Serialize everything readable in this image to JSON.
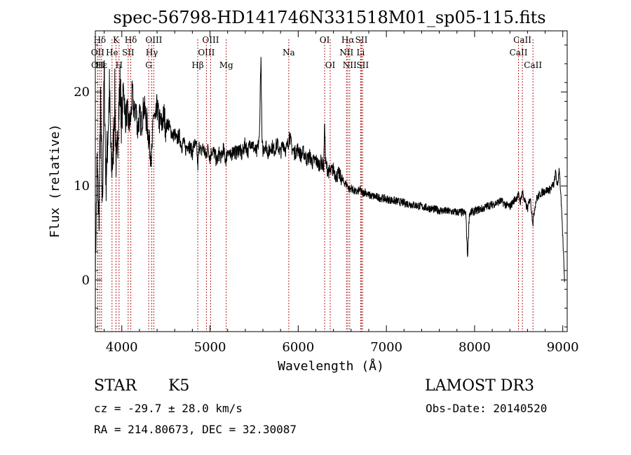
{
  "chart_data": {
    "type": "line",
    "title": "spec-56798-HD141746N331518M01_sp05-115.fits",
    "xlabel": "Wavelength (Å)",
    "ylabel": "Flux (relative)",
    "xlim": [
      3700,
      9050
    ],
    "ylim": [
      -5.5,
      26.5
    ],
    "xticks": [
      4000,
      5000,
      6000,
      7000,
      8000,
      9000
    ],
    "yticks": [
      0,
      10,
      20
    ],
    "xtick_labels": [
      "4000",
      "5000",
      "6000",
      "7000",
      "8000",
      "9000"
    ],
    "ytick_labels": [
      "0",
      "10",
      "20"
    ],
    "line_color": "#000000",
    "marker_color": "#b22222",
    "series": [
      {
        "name": "flux",
        "x": [
          3700,
          3720,
          3740,
          3760,
          3780,
          3800,
          3820,
          3840,
          3860,
          3880,
          3900,
          3920,
          3940,
          3960,
          3980,
          4000,
          4020,
          4040,
          4060,
          4080,
          4100,
          4120,
          4140,
          4160,
          4180,
          4200,
          4220,
          4250,
          4280,
          4300,
          4320,
          4340,
          4360,
          4380,
          4400,
          4420,
          4450,
          4480,
          4500,
          4520,
          4550,
          4580,
          4600,
          4620,
          4650,
          4680,
          4700,
          4720,
          4750,
          4780,
          4800,
          4820,
          4850,
          4861,
          4880,
          4900,
          4920,
          4950,
          4980,
          5000,
          5020,
          5050,
          5080,
          5100,
          5130,
          5150,
          5170,
          5184,
          5200,
          5230,
          5260,
          5300,
          5330,
          5360,
          5400,
          5430,
          5460,
          5500,
          5530,
          5560,
          5577,
          5590,
          5600,
          5630,
          5660,
          5700,
          5730,
          5760,
          5800,
          5830,
          5860,
          5893,
          5900,
          5930,
          5960,
          6000,
          6030,
          6060,
          6100,
          6130,
          6160,
          6200,
          6230,
          6260,
          6290,
          6300,
          6310,
          6330,
          6360,
          6400,
          6430,
          6460,
          6500,
          6530,
          6563,
          6580,
          6600,
          6630,
          6660,
          6700,
          6730,
          6760,
          6800,
          6850,
          6900,
          6950,
          7000,
          7050,
          7100,
          7150,
          7200,
          7250,
          7300,
          7350,
          7400,
          7450,
          7500,
          7550,
          7600,
          7650,
          7700,
          7750,
          7800,
          7850,
          7900,
          7920,
          7940,
          7960,
          8000,
          8050,
          8100,
          8150,
          8200,
          8250,
          8300,
          8350,
          8400,
          8450,
          8500,
          8520,
          8542,
          8560,
          8600,
          8630,
          8662,
          8680,
          8700,
          8750,
          8800,
          8850,
          8900,
          8920,
          8940,
          8960,
          8980,
          9000,
          9020
        ],
        "values": [
          1.5,
          12.0,
          6.5,
          18.0,
          8.0,
          22.0,
          10.5,
          15.0,
          20.0,
          12.0,
          13.0,
          19.5,
          11.0,
          17.5,
          20.5,
          16.5,
          21.0,
          17.0,
          18.0,
          16.5,
          17.0,
          20.0,
          17.5,
          18.5,
          16.0,
          17.5,
          16.5,
          18.5,
          17.0,
          15.5,
          14.0,
          13.0,
          18.0,
          16.5,
          18.5,
          17.0,
          16.5,
          17.5,
          16.0,
          16.8,
          16.0,
          15.3,
          15.6,
          14.8,
          15.4,
          14.2,
          14.8,
          13.8,
          14.5,
          14.0,
          13.5,
          14.5,
          14.0,
          12.0,
          14.5,
          13.5,
          14.2,
          13.2,
          14.0,
          13.0,
          13.8,
          13.5,
          12.5,
          13.5,
          13.0,
          14.0,
          13.0,
          12.8,
          14.0,
          13.0,
          13.8,
          13.5,
          14.0,
          13.3,
          14.5,
          13.6,
          14.8,
          14.0,
          13.5,
          15.0,
          24.0,
          14.5,
          13.8,
          14.5,
          13.5,
          14.3,
          13.8,
          14.5,
          13.5,
          14.6,
          13.8,
          14.8,
          15.5,
          14.0,
          13.5,
          14.0,
          13.2,
          13.6,
          12.8,
          13.2,
          12.5,
          12.8,
          12.2,
          12.6,
          12.0,
          17.0,
          12.5,
          11.8,
          11.4,
          11.8,
          11.0,
          11.3,
          10.6,
          10.3,
          10.0,
          9.6,
          9.8,
          9.5,
          9.3,
          9.6,
          9.2,
          9.4,
          9.0,
          8.9,
          8.8,
          8.7,
          8.6,
          8.5,
          8.4,
          8.3,
          8.2,
          8.1,
          8.0,
          7.9,
          7.8,
          7.7,
          7.6,
          7.5,
          7.4,
          7.35,
          7.3,
          7.25,
          7.2,
          7.2,
          7.1,
          2.5,
          7.0,
          7.2,
          7.3,
          7.5,
          7.6,
          7.9,
          8.0,
          8.2,
          8.4,
          8.0,
          7.8,
          8.5,
          9.0,
          8.3,
          9.5,
          8.6,
          7.5,
          8.8,
          6.0,
          7.6,
          8.6,
          9.2,
          9.5,
          9.6,
          10.2,
          11.5,
          9.8,
          12.0,
          8.5,
          4.5,
          0.0
        ]
      }
    ],
    "line_markers": [
      {
        "label": "Hδ",
        "wave": 3750,
        "row": 1
      },
      {
        "label": "OII",
        "wave": 3727,
        "row": 2
      },
      {
        "label": "OII",
        "wave": 3729,
        "row": 3
      },
      {
        "label": "Hε",
        "wave": 3770,
        "row": 3
      },
      {
        "label": "K",
        "wave": 3934,
        "row": 1
      },
      {
        "label": "He",
        "wave": 3889,
        "row": 2
      },
      {
        "label": "SII",
        "wave": 4072,
        "row": 2
      },
      {
        "label": "H",
        "wave": 3969,
        "row": 3
      },
      {
        "label": "Hδ",
        "wave": 4102,
        "row": 1
      },
      {
        "label": "OIII",
        "wave": 4363,
        "row": 1
      },
      {
        "label": "Hγ",
        "wave": 4340,
        "row": 2
      },
      {
        "label": "G",
        "wave": 4305,
        "row": 3
      },
      {
        "label": "OIII",
        "wave": 5007,
        "row": 1
      },
      {
        "label": "OIII",
        "wave": 4959,
        "row": 2
      },
      {
        "label": "Hβ",
        "wave": 4861,
        "row": 3
      },
      {
        "label": "Mg",
        "wave": 5184,
        "row": 3
      },
      {
        "label": "Na",
        "wave": 5893,
        "row": 2
      },
      {
        "label": "OI",
        "wave": 6300,
        "row": 1
      },
      {
        "label": "OI",
        "wave": 6363,
        "row": 3
      },
      {
        "label": "Hα",
        "wave": 6563,
        "row": 1
      },
      {
        "label": "NII",
        "wave": 6548,
        "row": 2
      },
      {
        "label": "NII",
        "wave": 6584,
        "row": 3
      },
      {
        "label": "SII",
        "wave": 6717,
        "row": 1
      },
      {
        "label": "Li",
        "wave": 6708,
        "row": 2
      },
      {
        "label": "SII",
        "wave": 6731,
        "row": 3
      },
      {
        "label": "CaII",
        "wave": 8542,
        "row": 1
      },
      {
        "label": "CaII",
        "wave": 8498,
        "row": 2
      },
      {
        "label": "CaII",
        "wave": 8662,
        "row": 3
      }
    ]
  },
  "info": {
    "object_class": "STAR",
    "subclass": "K5",
    "survey": "LAMOST DR3",
    "redshift_line": "cz = -29.7 ± 28.0 km/s",
    "obs_date_line": "Obs-Date: 20140520",
    "coords_line": "RA = 214.80673, DEC =  32.30087"
  }
}
